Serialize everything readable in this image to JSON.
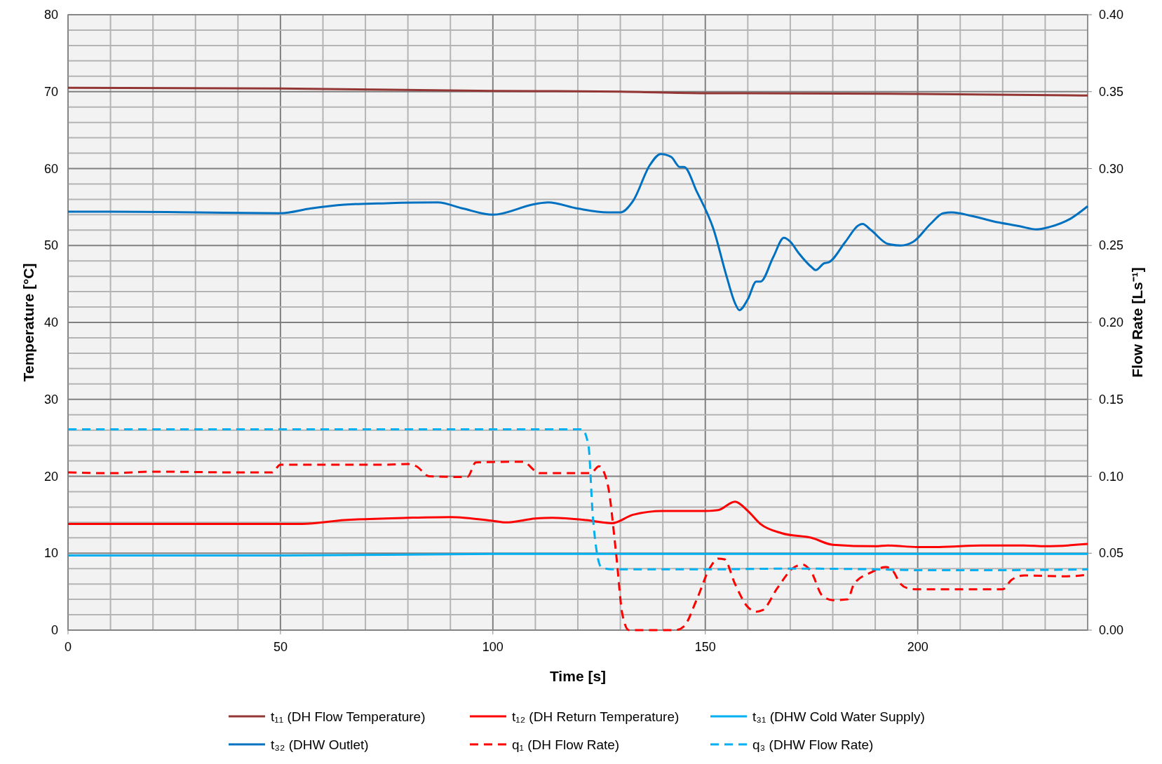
{
  "chart_data": {
    "type": "line",
    "xlabel": "Time [s]",
    "ylabel": "Temperature [°C]",
    "y2label": "Flow Rate [Ls⁻¹]",
    "xlim": [
      0,
      240
    ],
    "xticks": [
      0,
      {
        "value": 10,
        "label": null
      },
      {
        "value": 20,
        "label": null
      },
      {
        "value": 30,
        "label": null
      },
      {
        "value": 40,
        "label": null
      },
      50,
      {
        "value": 60,
        "label": null
      },
      {
        "value": 70,
        "label": null
      },
      {
        "value": 80,
        "label": null
      },
      {
        "value": 90,
        "label": null
      },
      100,
      {
        "value": 110,
        "label": null
      },
      {
        "value": 120,
        "label": null
      },
      {
        "value": 130,
        "label": null
      },
      {
        "value": 140,
        "label": null
      },
      150,
      {
        "value": 160,
        "label": null
      },
      {
        "value": 170,
        "label": null
      },
      {
        "value": 180,
        "label": null
      },
      {
        "value": 190,
        "label": null
      },
      200,
      {
        "value": 210,
        "label": null
      },
      {
        "value": 220,
        "label": null
      },
      {
        "value": 230,
        "label": null
      },
      {
        "value": 240,
        "label": null
      }
    ],
    "ylim": [
      0,
      80
    ],
    "yticks": [
      0,
      {
        "value": 2,
        "label": null
      },
      {
        "value": 4,
        "label": null
      },
      {
        "value": 6,
        "label": null
      },
      {
        "value": 8,
        "label": null
      },
      10,
      {
        "value": 12,
        "label": null
      },
      {
        "value": 14,
        "label": null
      },
      {
        "value": 16,
        "label": null
      },
      {
        "value": 18,
        "label": null
      },
      20,
      {
        "value": 22,
        "label": null
      },
      {
        "value": 24,
        "label": null
      },
      {
        "value": 26,
        "label": null
      },
      {
        "value": 28,
        "label": null
      },
      30,
      {
        "value": 32,
        "label": null
      },
      {
        "value": 34,
        "label": null
      },
      {
        "value": 36,
        "label": null
      },
      {
        "value": 38,
        "label": null
      },
      40,
      {
        "value": 42,
        "label": null
      },
      {
        "value": 44,
        "label": null
      },
      {
        "value": 46,
        "label": null
      },
      {
        "value": 48,
        "label": null
      },
      50,
      {
        "value": 52,
        "label": null
      },
      {
        "value": 54,
        "label": null
      },
      {
        "value": 56,
        "label": null
      },
      {
        "value": 58,
        "label": null
      },
      60,
      {
        "value": 62,
        "label": null
      },
      {
        "value": 64,
        "label": null
      },
      {
        "value": 66,
        "label": null
      },
      {
        "value": 68,
        "label": null
      },
      70,
      {
        "value": 72,
        "label": null
      },
      {
        "value": 74,
        "label": null
      },
      {
        "value": 76,
        "label": null
      },
      {
        "value": 78,
        "label": null
      },
      80
    ],
    "y2lim": [
      0,
      0.4
    ],
    "y2ticks": [
      {
        "value": 0,
        "label": "0.00"
      },
      {
        "value": 0.05,
        "label": "0.05"
      },
      {
        "value": 0.1,
        "label": "0.10"
      },
      {
        "value": 0.15,
        "label": "0.15"
      },
      {
        "value": 0.2,
        "label": "0.20"
      },
      {
        "value": 0.25,
        "label": "0.25"
      },
      {
        "value": 0.3,
        "label": "0.30"
      },
      {
        "value": 0.35,
        "label": "0.35"
      },
      {
        "value": 0.4,
        "label": "0.40"
      }
    ],
    "grid": true,
    "legend": "bottom",
    "series": [
      {
        "name": "t₁₁ (DH Flow Temperature)",
        "color": "#943634",
        "line_style": "solid",
        "x": [
          0,
          50,
          100,
          130,
          150,
          160,
          200,
          240
        ],
        "values": [
          70.5,
          70.4,
          70.1,
          70.0,
          69.8,
          69.8,
          69.7,
          69.5
        ]
      },
      {
        "name": "t₁₂ (DH Return Temperature)",
        "color": "#ff0000",
        "line_style": "solid",
        "x": [
          0,
          55,
          65,
          80,
          90,
          100,
          103,
          110,
          114,
          122,
          128,
          133,
          140,
          150,
          153,
          157,
          160,
          163,
          168,
          175,
          180,
          190,
          193,
          200,
          205,
          215,
          225,
          230,
          240
        ],
        "values": [
          13.8,
          13.8,
          14.3,
          14.6,
          14.7,
          14.2,
          14.0,
          14.5,
          14.6,
          14.3,
          13.9,
          15.0,
          15.5,
          15.5,
          15.6,
          16.7,
          15.5,
          13.8,
          12.6,
          12.0,
          11.1,
          10.9,
          11.0,
          10.8,
          10.8,
          11.0,
          11.0,
          10.9,
          11.2
        ]
      },
      {
        "name": "t₃₁ (DHW Cold Water Supply)",
        "color": "#00b0f0",
        "line_style": "solid",
        "x": [
          0,
          50,
          100,
          150,
          200,
          240
        ],
        "values": [
          9.7,
          9.7,
          9.9,
          9.9,
          9.9,
          9.9
        ]
      },
      {
        "name": "t₃₂ (DHW Outlet)",
        "color": "#0070c0",
        "line_style": "solid",
        "x": [
          0,
          10,
          30,
          50,
          57,
          65,
          75,
          87,
          93,
          100,
          110,
          113,
          120,
          127,
          130,
          133,
          137,
          139.5,
          142,
          144,
          145,
          148,
          152,
          155,
          157,
          158,
          160,
          162,
          163,
          166,
          168.5,
          170,
          172,
          175,
          176,
          178,
          179,
          183,
          186,
          187,
          189,
          193,
          196,
          199,
          203,
          206,
          208,
          213,
          219,
          224,
          228,
          231,
          236,
          240
        ],
        "values": [
          54.4,
          54.4,
          54.3,
          54.2,
          54.8,
          55.3,
          55.5,
          55.6,
          54.8,
          54.0,
          55.4,
          55.6,
          54.8,
          54.3,
          54.3,
          55.8,
          60.5,
          61.9,
          61.5,
          60.2,
          60.2,
          57,
          52,
          46,
          42.5,
          41.6,
          43,
          45.3,
          45.3,
          48.5,
          51,
          50.5,
          49,
          47.2,
          46.8,
          47.7,
          47.8,
          50.5,
          52.6,
          52.8,
          52,
          50.2,
          50,
          50.5,
          52.8,
          54.2,
          54.3,
          53.8,
          53.0,
          52.5,
          52.1,
          52.4,
          53.5,
          55.1
        ]
      },
      {
        "name": "q₁ (DH Flow Rate)",
        "color": "#ff0000",
        "line_style": "dashed",
        "axis": "y2",
        "x": [
          0,
          10,
          20,
          40,
          48,
          50,
          75,
          80,
          82,
          85,
          94,
          96,
          107,
          111,
          123,
          125,
          127,
          129,
          130.5,
          132,
          143,
          145,
          148,
          151,
          153,
          154.5,
          157,
          160,
          162,
          163.5,
          167,
          171,
          173,
          175,
          177.5,
          180,
          183.5,
          185,
          189,
          192.5,
          194,
          196,
          198,
          200,
          220,
          222,
          225,
          235,
          240
        ],
        "values": [
          0.1025,
          0.102,
          0.103,
          0.1025,
          0.1025,
          0.1075,
          0.1075,
          0.108,
          0.1065,
          0.1,
          0.0995,
          0.109,
          0.1095,
          0.102,
          0.102,
          0.1065,
          0.095,
          0.05,
          0.01,
          0,
          0,
          0.0025,
          0.02,
          0.04,
          0.0465,
          0.046,
          0.03,
          0.015,
          0.012,
          0.013,
          0.0275,
          0.041,
          0.0425,
          0.0375,
          0.0225,
          0.0195,
          0.02,
          0.03,
          0.0375,
          0.041,
          0.039,
          0.03,
          0.027,
          0.0265,
          0.0265,
          0.0325,
          0.0355,
          0.035,
          0.036
        ]
      },
      {
        "name": "q₃ (DHW Flow Rate)",
        "color": "#00b0f0",
        "line_style": "dashed",
        "axis": "y2",
        "x": [
          0,
          50,
          100,
          121,
          122.5,
          123.5,
          124.5,
          125.5,
          128,
          150,
          170,
          190,
          200,
          220,
          240
        ],
        "values": [
          0.1305,
          0.1305,
          0.1305,
          0.1305,
          0.12,
          0.075,
          0.05,
          0.041,
          0.0395,
          0.0395,
          0.04,
          0.0395,
          0.039,
          0.039,
          0.0395
        ]
      }
    ]
  }
}
